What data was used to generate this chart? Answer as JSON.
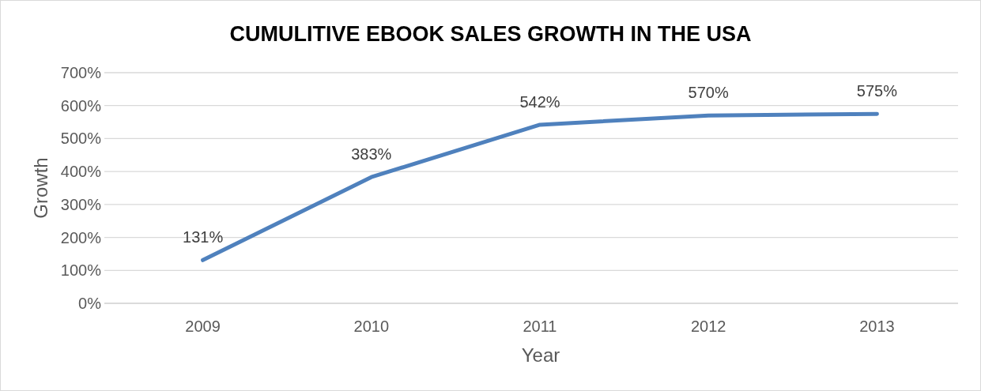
{
  "chart_data": {
    "type": "line",
    "title": "CUMULITIVE EBOOK SALES GROWTH IN THE USA",
    "xlabel": "Year",
    "ylabel": "Growth",
    "categories": [
      "2009",
      "2010",
      "2011",
      "2012",
      "2013"
    ],
    "series": [
      {
        "color": "#4f81bd",
        "values": [
          131,
          383,
          542,
          570,
          575
        ],
        "value_labels": [
          "131%",
          "383%",
          "542%",
          "570%",
          "575%"
        ]
      }
    ],
    "ylim": [
      0,
      700
    ],
    "yticks": [
      {
        "value": 0,
        "label": "0%"
      },
      {
        "value": 100,
        "label": "100%"
      },
      {
        "value": 200,
        "label": "200%"
      },
      {
        "value": 300,
        "label": "300%"
      },
      {
        "value": 400,
        "label": "400%"
      },
      {
        "value": 500,
        "label": "500%"
      },
      {
        "value": 600,
        "label": "600%"
      },
      {
        "value": 700,
        "label": "700%"
      }
    ],
    "grid": "y",
    "marker": "none",
    "line_style": "solid"
  }
}
